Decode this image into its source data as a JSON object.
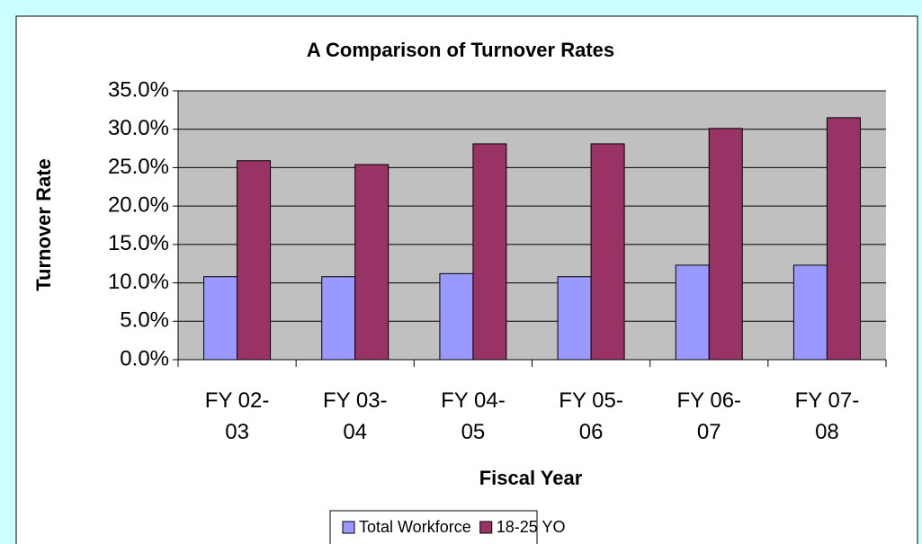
{
  "chart_data": {
    "type": "bar",
    "title": "A Comparison of Turnover Rates",
    "x_label": "Fiscal Year",
    "y_label": "Turnover Rate",
    "categories": [
      "FY 02-03",
      "FY 03-04",
      "FY 04-05",
      "FY 05-06",
      "FY 06-07",
      "FY 07-08"
    ],
    "series": [
      {
        "name": "Total Workforce",
        "color": "#9999ff",
        "values": [
          10.8,
          10.8,
          11.2,
          10.8,
          12.3,
          12.3
        ]
      },
      {
        "name": "18-25 YO",
        "color": "#993366",
        "values": [
          25.9,
          25.4,
          28.1,
          28.1,
          30.1,
          31.5
        ]
      }
    ],
    "ylim": [
      0,
      35
    ],
    "yticks": [
      {
        "value": 0,
        "label": "0.0%"
      },
      {
        "value": 5,
        "label": "5.0%"
      },
      {
        "value": 10,
        "label": "10.0%"
      },
      {
        "value": 15,
        "label": "15.0%"
      },
      {
        "value": 20,
        "label": "20.0%"
      },
      {
        "value": 25,
        "label": "25.0%"
      },
      {
        "value": 30,
        "label": "30.0%"
      },
      {
        "value": 35,
        "label": "35.0%"
      }
    ],
    "grid": true,
    "legend": "bottom"
  }
}
